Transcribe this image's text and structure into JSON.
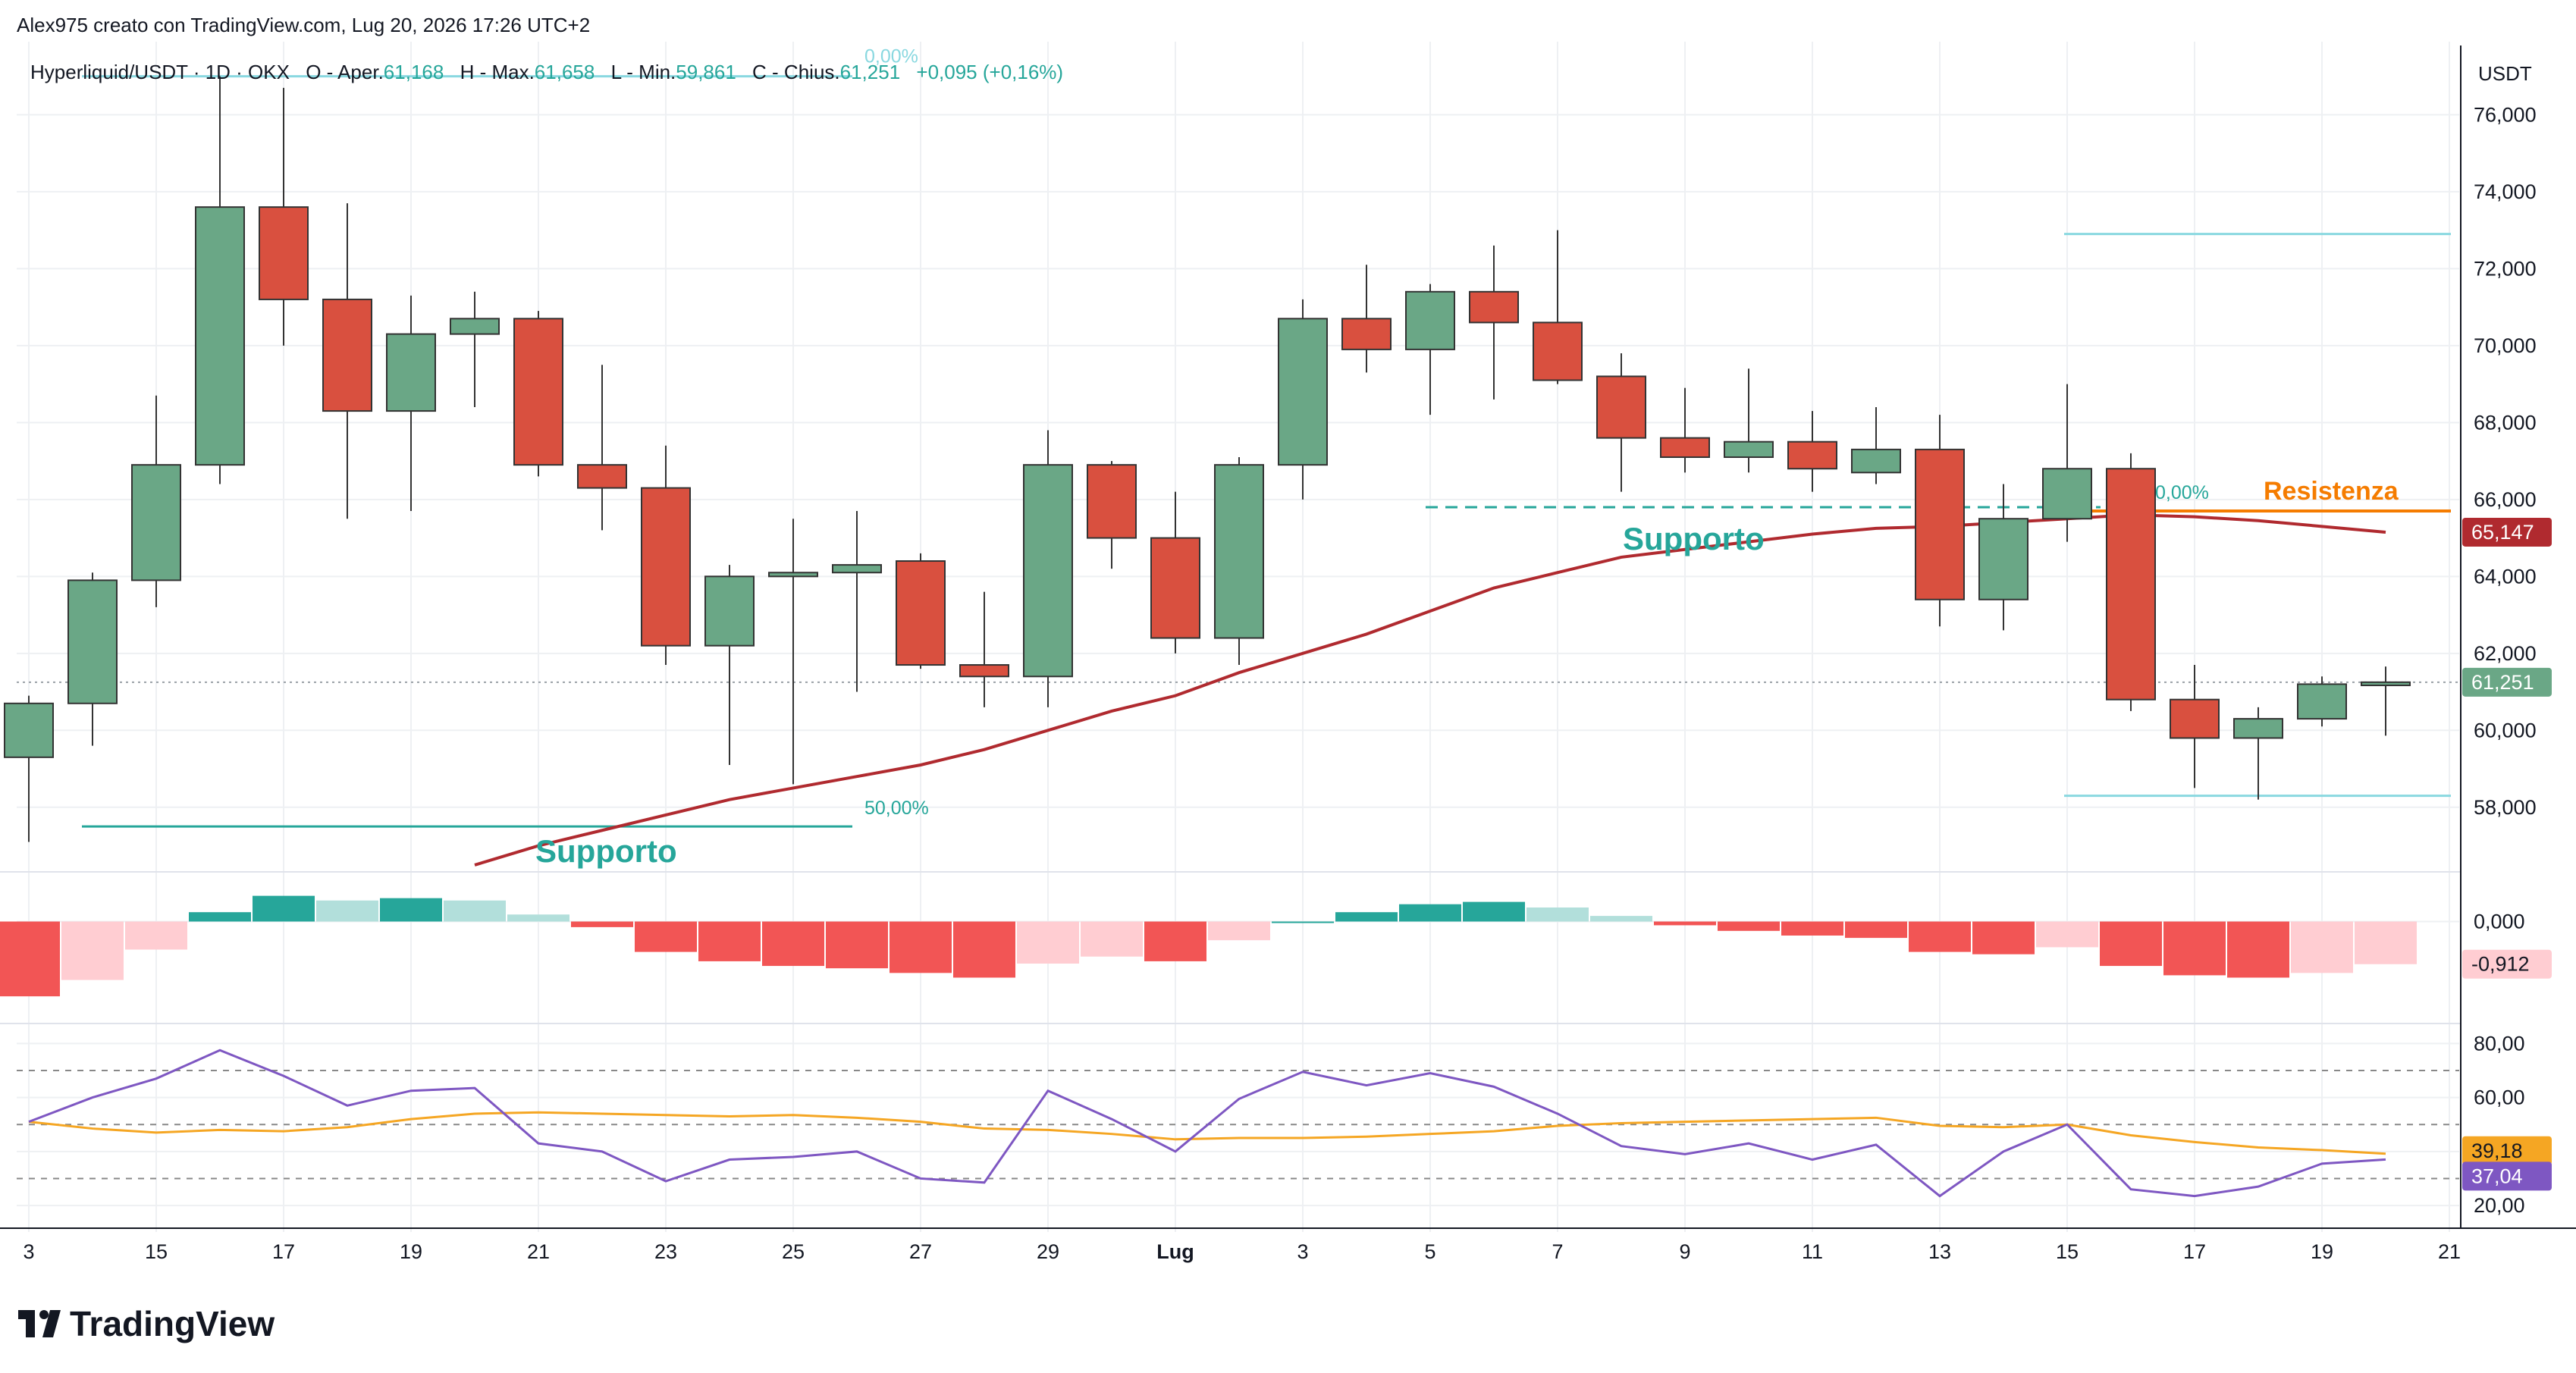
{
  "header": {
    "author_line": "Alex975 creato con TradingView.com, Lug 20, 2026 17:26 UTC+2",
    "symbol": "Hyperliquid/USDT · 1D · OKX",
    "o_label": "O - Aper.",
    "o_value": "61,168",
    "h_label": "H - Max.",
    "h_value": "61,658",
    "l_label": "L - Min.",
    "l_value": "59,861",
    "c_label": "C - Chius.",
    "c_value": "61,251",
    "change": "+0,095 (+0,16%)"
  },
  "currency_label": "USDT",
  "branding": {
    "name": "TradingView"
  },
  "colors": {
    "up": "#6aa786",
    "down": "#d9503f",
    "ma": "#b02a2f",
    "fib": "#89d8e0",
    "fib_green": "#26a69a",
    "resistance": "#f57c00",
    "support_text": "#26a69a",
    "rsi": "#7e57c2",
    "rsi_ma": "#f5a623",
    "hist_up_strong": "#26a69a",
    "hist_up_weak": "#b2dfdb",
    "hist_down_strong": "#f25555",
    "hist_down_weak": "#ffcdd2",
    "last_price": "#6aa786"
  },
  "chart_data": {
    "type": "candlestick",
    "x_ticks": [
      "3",
      "15",
      "17",
      "19",
      "21",
      "23",
      "25",
      "27",
      "29",
      "Lug",
      "3",
      "5",
      "7",
      "9",
      "11",
      "13",
      "15",
      "17",
      "19",
      "21"
    ],
    "price_axis_ticks": [
      "58,000",
      "60,000",
      "62,000",
      "64,000",
      "66,000",
      "68,000",
      "70,000",
      "72,000",
      "74,000",
      "76,000"
    ],
    "price_range": [
      56400,
      77800
    ],
    "candles": [
      {
        "o": 59.3,
        "h": 60.9,
        "l": 57.1,
        "c": 60.7
      },
      {
        "o": 60.7,
        "h": 64.1,
        "l": 59.6,
        "c": 63.9
      },
      {
        "o": 63.9,
        "h": 68.7,
        "l": 63.2,
        "c": 66.9
      },
      {
        "o": 66.9,
        "h": 77.0,
        "l": 66.4,
        "c": 73.6
      },
      {
        "o": 73.6,
        "h": 76.7,
        "l": 70.0,
        "c": 71.2
      },
      {
        "o": 71.2,
        "h": 73.7,
        "l": 65.5,
        "c": 68.3
      },
      {
        "o": 68.3,
        "h": 71.3,
        "l": 65.7,
        "c": 70.3
      },
      {
        "o": 70.3,
        "h": 71.4,
        "l": 68.4,
        "c": 70.7
      },
      {
        "o": 70.7,
        "h": 70.9,
        "l": 66.6,
        "c": 66.9
      },
      {
        "o": 66.9,
        "h": 69.5,
        "l": 65.2,
        "c": 66.3
      },
      {
        "o": 66.3,
        "h": 67.4,
        "l": 61.7,
        "c": 62.2
      },
      {
        "o": 62.2,
        "h": 64.3,
        "l": 59.1,
        "c": 64.0
      },
      {
        "o": 64.0,
        "h": 65.5,
        "l": 58.6,
        "c": 64.1
      },
      {
        "o": 64.1,
        "h": 65.7,
        "l": 61.0,
        "c": 64.3
      },
      {
        "o": 64.4,
        "h": 64.6,
        "l": 61.6,
        "c": 61.7
      },
      {
        "o": 61.7,
        "h": 63.6,
        "l": 60.6,
        "c": 61.4
      },
      {
        "o": 61.4,
        "h": 67.8,
        "l": 60.6,
        "c": 66.9
      },
      {
        "o": 66.9,
        "h": 67.0,
        "l": 64.2,
        "c": 65.0
      },
      {
        "o": 65.0,
        "h": 66.2,
        "l": 62.0,
        "c": 62.4
      },
      {
        "o": 62.4,
        "h": 67.1,
        "l": 61.7,
        "c": 66.9
      },
      {
        "o": 66.9,
        "h": 71.2,
        "l": 66.0,
        "c": 70.7
      },
      {
        "o": 70.7,
        "h": 72.1,
        "l": 69.3,
        "c": 69.9
      },
      {
        "o": 69.9,
        "h": 71.6,
        "l": 68.2,
        "c": 71.4
      },
      {
        "o": 71.4,
        "h": 72.6,
        "l": 68.6,
        "c": 70.6
      },
      {
        "o": 70.6,
        "h": 73.0,
        "l": 69.0,
        "c": 69.1
      },
      {
        "o": 69.2,
        "h": 69.8,
        "l": 66.2,
        "c": 67.6
      },
      {
        "o": 67.6,
        "h": 68.9,
        "l": 66.7,
        "c": 67.1
      },
      {
        "o": 67.1,
        "h": 69.4,
        "l": 66.7,
        "c": 67.5
      },
      {
        "o": 67.5,
        "h": 68.3,
        "l": 66.2,
        "c": 66.8
      },
      {
        "o": 66.7,
        "h": 68.4,
        "l": 66.4,
        "c": 67.3
      },
      {
        "o": 67.3,
        "h": 68.2,
        "l": 62.7,
        "c": 63.4
      },
      {
        "o": 63.4,
        "h": 66.4,
        "l": 62.6,
        "c": 65.5
      },
      {
        "o": 65.5,
        "h": 69.0,
        "l": 64.9,
        "c": 66.8
      },
      {
        "o": 66.8,
        "h": 67.2,
        "l": 60.5,
        "c": 60.8
      },
      {
        "o": 60.8,
        "h": 61.7,
        "l": 58.5,
        "c": 59.8
      },
      {
        "o": 59.8,
        "h": 60.6,
        "l": 58.2,
        "c": 60.3
      },
      {
        "o": 60.3,
        "h": 61.4,
        "l": 60.1,
        "c": 61.2
      },
      {
        "o": 61.168,
        "h": 61.658,
        "l": 59.861,
        "c": 61.251
      }
    ],
    "moving_average": [
      null,
      null,
      null,
      null,
      null,
      null,
      null,
      56.5,
      57.0,
      57.4,
      57.8,
      58.2,
      58.5,
      58.8,
      59.1,
      59.5,
      60.0,
      60.5,
      60.9,
      61.5,
      62.0,
      62.5,
      63.1,
      63.7,
      64.1,
      64.5,
      64.7,
      64.9,
      65.1,
      65.25,
      65.3,
      65.4,
      65.5,
      65.6,
      65.55,
      65.45,
      65.3,
      65.15
    ],
    "last_price_label": "61,251",
    "ma_label": "65,147",
    "fib_top": {
      "price": 77.0,
      "label": "0,00%"
    },
    "fib_bottom": {
      "price": 57.5,
      "label": "50,00%"
    },
    "fib_right_top": {
      "price": 72.9
    },
    "fib_right_mid": {
      "price": 65.7,
      "label": "0,00%"
    },
    "fib_right_bottom": {
      "price": 58.3
    },
    "resistance": {
      "price": 65.7,
      "label": "Resistenza"
    },
    "support_1": {
      "price": 65.8,
      "label": "Supporto"
    },
    "support_2": {
      "label": "Supporto"
    },
    "macd_hist": [
      -1.6,
      -1.25,
      -0.6,
      0.2,
      0.55,
      0.45,
      0.5,
      0.45,
      0.15,
      -0.12,
      -0.65,
      -0.85,
      -0.95,
      -1.0,
      -1.1,
      -1.2,
      -0.9,
      -0.75,
      -0.85,
      -0.4,
      0.0,
      0.2,
      0.37,
      0.42,
      0.3,
      0.12,
      -0.08,
      -0.2,
      -0.3,
      -0.35,
      -0.65,
      -0.7,
      -0.55,
      -0.95,
      -1.15,
      -1.2,
      -1.1,
      -0.912
    ],
    "macd_axis_ticks": [
      "0,000"
    ],
    "macd_last_label": "-0,912",
    "rsi": [
      51.0,
      60.0,
      67.0,
      77.5,
      68.0,
      57.0,
      62.5,
      63.5,
      43.0,
      40.0,
      29.0,
      37.0,
      38.0,
      40.0,
      30.0,
      28.5,
      62.5,
      52.0,
      40.0,
      59.5,
      69.5,
      64.5,
      69.0,
      64.0,
      54.0,
      42.0,
      39.0,
      43.0,
      37.0,
      42.5,
      23.5,
      40.0,
      50.0,
      26.0,
      23.5,
      27.0,
      35.5,
      37.04
    ],
    "rsi_ma": [
      51.0,
      48.5,
      47.0,
      48.0,
      47.5,
      49.0,
      52.0,
      54.0,
      54.5,
      54.0,
      53.5,
      53.0,
      53.5,
      52.5,
      51.0,
      48.5,
      48.0,
      46.5,
      44.5,
      45.0,
      45.0,
      45.5,
      46.5,
      47.5,
      49.5,
      50.5,
      51.0,
      51.5,
      52.0,
      52.5,
      49.5,
      49.0,
      50.0,
      46.0,
      43.5,
      41.5,
      40.5,
      39.18
    ],
    "rsi_axis_ticks": [
      "20,00",
      "60,00",
      "80,00"
    ],
    "rsi_levels": [
      70,
      50,
      30
    ],
    "rsi_label": "37,04",
    "rsi_ma_label": "39,18"
  }
}
